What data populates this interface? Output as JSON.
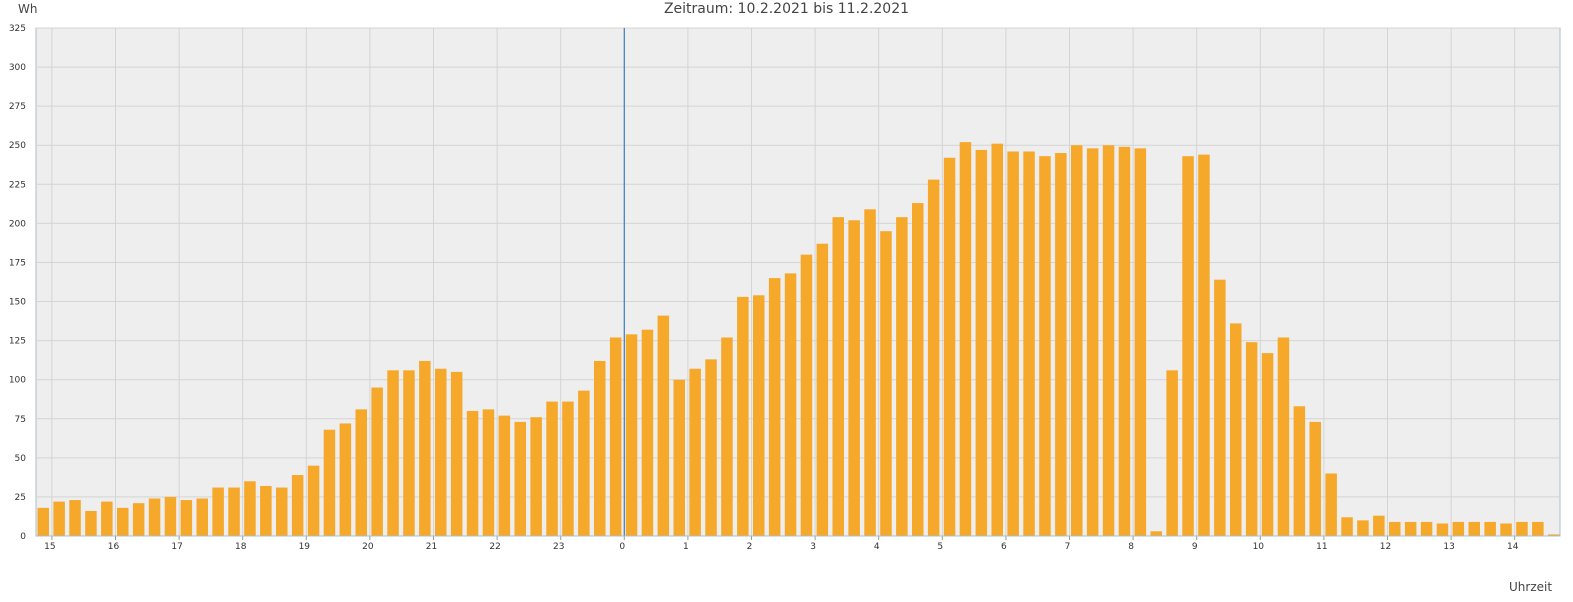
{
  "header": {
    "title": "Zeitraum: 10.2.2021 bis 11.2.2021",
    "y_unit": "Wh",
    "x_unit": "Uhrzeit"
  },
  "chart_data": {
    "type": "bar",
    "title": "Zeitraum: 10.2.2021 bis 11.2.2021",
    "xlabel": "Uhrzeit",
    "ylabel": "Wh",
    "ylim": [
      0,
      325
    ],
    "y_ticks": [
      0,
      25,
      50,
      75,
      100,
      125,
      150,
      175,
      200,
      225,
      250,
      275,
      300,
      325
    ],
    "x_ticks": [
      "15",
      "16",
      "17",
      "18",
      "19",
      "20",
      "21",
      "22",
      "23",
      "0",
      "1",
      "2",
      "3",
      "4",
      "5",
      "6",
      "7",
      "8",
      "9",
      "10",
      "11",
      "12",
      "13",
      "14"
    ],
    "interval": "15 min",
    "start_hour": 14.75,
    "grid": true,
    "bar_color": "#f5a82a",
    "background_color": "#eeeeee",
    "marker_color": "#3a7fc4",
    "midnight_marker": "0",
    "values": [
      18,
      22,
      23,
      16,
      22,
      18,
      21,
      24,
      25,
      23,
      24,
      31,
      31,
      35,
      32,
      31,
      39,
      45,
      68,
      72,
      81,
      95,
      106,
      106,
      112,
      107,
      105,
      80,
      81,
      77,
      73,
      76,
      86,
      86,
      93,
      112,
      127,
      129,
      132,
      141,
      100,
      107,
      113,
      127,
      153,
      154,
      165,
      168,
      180,
      187,
      204,
      202,
      209,
      195,
      204,
      213,
      228,
      242,
      252,
      247,
      251,
      246,
      246,
      243,
      245,
      250,
      248,
      250,
      249,
      248,
      3,
      106,
      243,
      244,
      164,
      136,
      124,
      117,
      127,
      83,
      73,
      40,
      12,
      10,
      13,
      9,
      9,
      9,
      8,
      9,
      9,
      9,
      8,
      9,
      9,
      1
    ]
  }
}
